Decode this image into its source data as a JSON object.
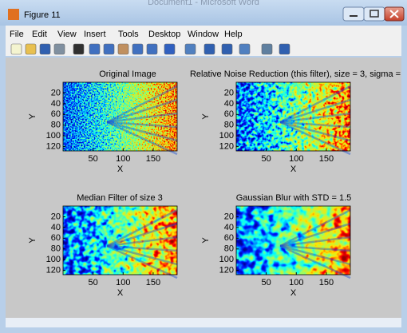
{
  "window": {
    "title": "Figure 11",
    "background_title": "Document1 - Microsoft Word"
  },
  "menu": [
    "File",
    "Edit",
    "View",
    "Insert",
    "Tools",
    "Desktop",
    "Window",
    "Help"
  ],
  "subplots": [
    {
      "title": "Original Image",
      "xlabel": "X",
      "ylabel": "Y",
      "xticks": [
        50,
        100,
        150
      ],
      "yticks": [
        20,
        40,
        60,
        80,
        100,
        120
      ]
    },
    {
      "title": "Relative Noise Reduction (this filter), size = 3, sigma =",
      "xlabel": "X",
      "ylabel": "Y",
      "xticks": [
        50,
        100,
        150
      ],
      "yticks": [
        20,
        40,
        60,
        80,
        100,
        120
      ]
    },
    {
      "title": "Median Filter of size 3",
      "xlabel": "X",
      "ylabel": "Y",
      "xticks": [
        50,
        100,
        150
      ],
      "yticks": [
        20,
        40,
        60,
        80,
        100,
        120
      ]
    },
    {
      "title": "Gaussian Blur with STD = 1.5",
      "xlabel": "X",
      "ylabel": "Y",
      "xticks": [
        50,
        100,
        150
      ],
      "yticks": [
        20,
        40,
        60,
        80,
        100,
        120
      ]
    }
  ]
}
